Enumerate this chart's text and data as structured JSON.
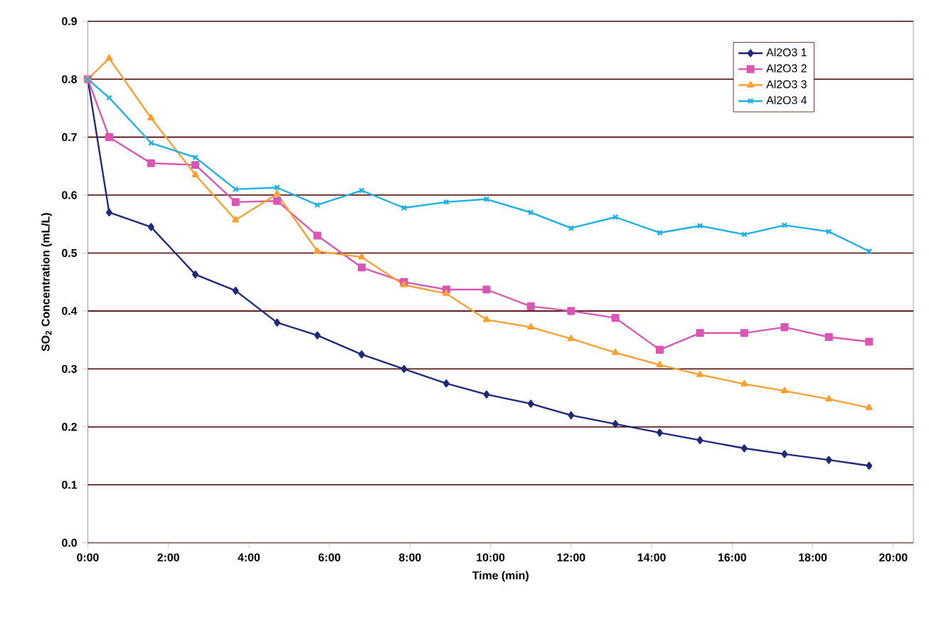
{
  "chart_data": {
    "type": "line",
    "xlabel": "Time (min)",
    "ylabel": "SO$_{2}$ Concentration  (mL/L)",
    "xlim": [
      0,
      20.5
    ],
    "ylim": [
      0,
      0.9
    ],
    "xticks": [
      {
        "value": 0,
        "label": "0:00"
      },
      {
        "value": 2,
        "label": "2:00"
      },
      {
        "value": 4,
        "label": "4:00"
      },
      {
        "value": 6,
        "label": "6:00"
      },
      {
        "value": 8,
        "label": "8:00"
      },
      {
        "value": 10,
        "label": "10:00"
      },
      {
        "value": 12,
        "label": "12:00"
      },
      {
        "value": 14,
        "label": "14:00"
      },
      {
        "value": 16,
        "label": "16:00"
      },
      {
        "value": 18,
        "label": "18:00"
      },
      {
        "value": 20,
        "label": "20:00"
      }
    ],
    "yticks": [
      {
        "value": 0,
        "label": "0.0"
      },
      0.1,
      0.2,
      0.3,
      0.4,
      0.5,
      0.6,
      0.7,
      0.8,
      0.9
    ],
    "grid": "y",
    "legend": "top right",
    "line_style": "solid",
    "x": [
      0,
      0.53,
      1.57,
      2.67,
      3.67,
      4.7,
      5.7,
      6.8,
      7.85,
      8.9,
      9.9,
      11,
      12,
      13.1,
      14.2,
      15.2,
      16.3,
      17.3,
      18.4,
      19.4
    ],
    "series": [
      {
        "name": "Al2O3 1",
        "color": "#1f2a7a",
        "marker": "diamond",
        "values": [
          0.8,
          0.57,
          0.545,
          0.463,
          0.435,
          0.38,
          0.358,
          0.325,
          0.3,
          0.275,
          0.256,
          0.24,
          0.22,
          0.205,
          0.19,
          0.177,
          0.163,
          0.153,
          0.143,
          0.133
        ]
      },
      {
        "name": "Al2O3 2",
        "color": "#d957b4",
        "marker": "square",
        "values": [
          0.8,
          0.7,
          0.655,
          0.652,
          0.588,
          0.59,
          0.53,
          0.475,
          0.45,
          0.437,
          0.437,
          0.408,
          0.4,
          0.388,
          0.333,
          0.362,
          0.362,
          0.372,
          0.355,
          0.347
        ]
      },
      {
        "name": "Al2O3 3",
        "color": "#f7a133",
        "marker": "triangle",
        "values": [
          0.8,
          0.836,
          0.733,
          0.635,
          0.557,
          0.602,
          0.503,
          0.493,
          0.445,
          0.43,
          0.385,
          0.372,
          0.352,
          0.328,
          0.307,
          0.29,
          0.274,
          0.262,
          0.248,
          0.233
        ]
      },
      {
        "name": "Al2O3 4",
        "color": "#1fb0e6",
        "marker": "cross",
        "values": [
          0.8,
          0.768,
          0.69,
          0.665,
          0.61,
          0.613,
          0.583,
          0.608,
          0.578,
          0.588,
          0.593,
          0.57,
          0.543,
          0.562,
          0.535,
          0.547,
          0.532,
          0.548,
          0.537,
          0.503
        ]
      }
    ]
  }
}
